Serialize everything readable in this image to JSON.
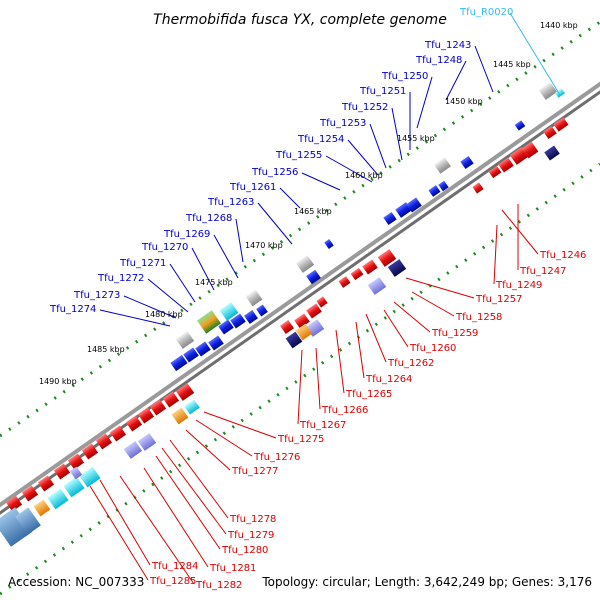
{
  "title": "Thermobifida fusca YX, complete genome",
  "footer": {
    "accession": "Accession: NC_007333",
    "topology": "Topology: circular; Length: 3,642,249 bp; Genes: 3,176"
  },
  "colors": {
    "forward_label": "#0000cc",
    "reverse_label": "#dd0000",
    "rna_label": "#33bbee",
    "forward_gene": "#0b1fe0",
    "reverse_gene": "#e81010",
    "backbone": "#8c8c8c",
    "tick_dots": "#1f8a1f"
  },
  "scale_ticks": [
    "1440 kbp",
    "1445 kbp",
    "1450 kbp",
    "1455 kbp",
    "1460 kbp",
    "1465 kbp",
    "1470 kbp",
    "1475 kbp",
    "1480 kbp",
    "1485 kbp",
    "1490 kbp"
  ],
  "forward_genes": [
    {
      "label": "Tfu_R0020",
      "type": "rna"
    },
    {
      "label": "Tfu_1243"
    },
    {
      "label": "Tfu_1248"
    },
    {
      "label": "Tfu_1250"
    },
    {
      "label": "Tfu_1251"
    },
    {
      "label": "Tfu_1252"
    },
    {
      "label": "Tfu_1253"
    },
    {
      "label": "Tfu_1254"
    },
    {
      "label": "Tfu_1255"
    },
    {
      "label": "Tfu_1256"
    },
    {
      "label": "Tfu_1261"
    },
    {
      "label": "Tfu_1263"
    },
    {
      "label": "Tfu_1268"
    },
    {
      "label": "Tfu_1269"
    },
    {
      "label": "Tfu_1270"
    },
    {
      "label": "Tfu_1271"
    },
    {
      "label": "Tfu_1272"
    },
    {
      "label": "Tfu_1273"
    },
    {
      "label": "Tfu_1274"
    }
  ],
  "reverse_genes": [
    {
      "label": "Tfu_1246"
    },
    {
      "label": "Tfu_1247"
    },
    {
      "label": "Tfu_1249"
    },
    {
      "label": "Tfu_1257"
    },
    {
      "label": "Tfu_1258"
    },
    {
      "label": "Tfu_1259"
    },
    {
      "label": "Tfu_1260"
    },
    {
      "label": "Tfu_1262"
    },
    {
      "label": "Tfu_1264"
    },
    {
      "label": "Tfu_1265"
    },
    {
      "label": "Tfu_1266"
    },
    {
      "label": "Tfu_1267"
    },
    {
      "label": "Tfu_1275"
    },
    {
      "label": "Tfu_1276"
    },
    {
      "label": "Tfu_1277"
    },
    {
      "label": "Tfu_1278"
    },
    {
      "label": "Tfu_1279"
    },
    {
      "label": "Tfu_1280"
    },
    {
      "label": "Tfu_1281"
    },
    {
      "label": "Tfu_1284"
    },
    {
      "label": "Tfu_1285"
    },
    {
      "label": "Tfu_1282"
    }
  ]
}
